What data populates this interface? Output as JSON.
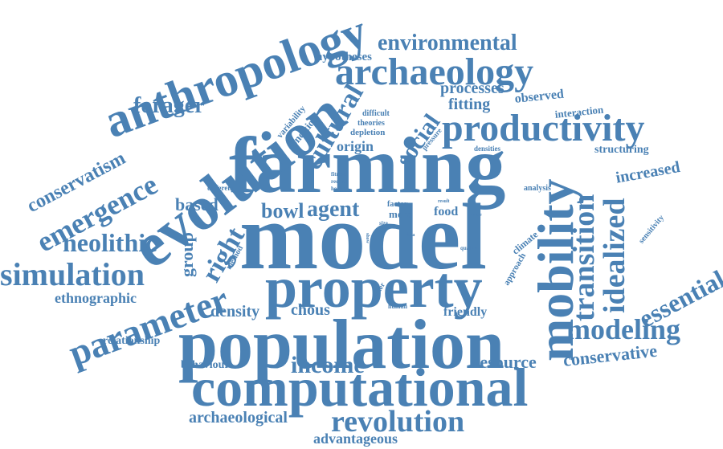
{
  "color": "#4a81b4",
  "words": [
    {
      "text": "farming",
      "weight": 100
    },
    {
      "text": "model",
      "weight": 96
    },
    {
      "text": "population",
      "weight": 88
    },
    {
      "text": "property",
      "weight": 80
    },
    {
      "text": "computational",
      "weight": 78
    },
    {
      "text": "evolution",
      "weight": 76
    },
    {
      "text": "mobility",
      "weight": 70
    },
    {
      "text": "anthropology",
      "weight": 68
    },
    {
      "text": "productivity",
      "weight": 64
    },
    {
      "text": "archaeology",
      "weight": 60
    },
    {
      "text": "parameter",
      "weight": 56
    },
    {
      "text": "revolution",
      "weight": 50
    },
    {
      "text": "transition",
      "weight": 48
    },
    {
      "text": "idealized",
      "weight": 46
    },
    {
      "text": "emergence",
      "weight": 44
    },
    {
      "text": "simulation",
      "weight": 44
    },
    {
      "text": "modeling",
      "weight": 42
    },
    {
      "text": "neolithic",
      "weight": 40
    },
    {
      "text": "environmental",
      "weight": 38
    },
    {
      "text": "cultural",
      "weight": 36
    },
    {
      "text": "income",
      "weight": 34
    },
    {
      "text": "essential",
      "weight": 34
    },
    {
      "text": "forager",
      "weight": 32
    },
    {
      "text": "right",
      "weight": 32
    },
    {
      "text": "social",
      "weight": 30
    },
    {
      "text": "conservatism",
      "weight": 28
    },
    {
      "text": "bowl",
      "weight": 28
    },
    {
      "text": "agent",
      "weight": 28
    },
    {
      "text": "archaeological",
      "weight": 26
    },
    {
      "text": "conservative",
      "weight": 26
    },
    {
      "text": "resource",
      "weight": 26
    },
    {
      "text": "advantageous",
      "weight": 24
    },
    {
      "text": "increased",
      "weight": 24
    },
    {
      "text": "density",
      "weight": 24
    },
    {
      "text": "chous",
      "weight": 24
    },
    {
      "text": "processes",
      "weight": 22
    },
    {
      "text": "fitting",
      "weight": 22
    },
    {
      "text": "group",
      "weight": 22
    },
    {
      "text": "ethnographic",
      "weight": 20
    },
    {
      "text": "relationship",
      "weight": 18
    },
    {
      "text": "behaviour",
      "weight": 18
    },
    {
      "text": "friendly",
      "weight": 18
    },
    {
      "text": "origin",
      "weight": 18
    },
    {
      "text": "based",
      "weight": 22
    },
    {
      "text": "hypotheses",
      "weight": 18
    },
    {
      "text": "observed",
      "weight": 18
    },
    {
      "text": "structuring",
      "weight": 16
    },
    {
      "text": "interaction",
      "weight": 14
    },
    {
      "text": "food",
      "weight": 16
    },
    {
      "text": "more",
      "weight": 14
    },
    {
      "text": "factor",
      "weight": 12
    },
    {
      "text": "climate",
      "weight": 12
    },
    {
      "text": "approach",
      "weight": 12
    },
    {
      "text": "variability",
      "weight": 12
    },
    {
      "text": "condition",
      "weight": 14
    },
    {
      "text": "difficult",
      "weight": 12
    },
    {
      "text": "theories",
      "weight": 12
    },
    {
      "text": "depletion",
      "weight": 12
    },
    {
      "text": "pressure",
      "weight": 10
    },
    {
      "text": "densities",
      "weight": 10
    },
    {
      "text": "analysis",
      "weight": 10
    },
    {
      "text": "sensitivity",
      "weight": 10
    },
    {
      "text": "different",
      "weight": 10
    },
    {
      "text": "fitness",
      "weight": 8
    },
    {
      "text": "record",
      "weight": 8
    },
    {
      "text": "health",
      "weight": 8
    },
    {
      "text": "method",
      "weight": 10
    },
    {
      "text": "size",
      "weight": 8
    },
    {
      "text": "show",
      "weight": 8
    },
    {
      "text": "data",
      "weight": 8
    },
    {
      "text": "result",
      "weight": 8
    },
    {
      "text": "value",
      "weight": 8
    },
    {
      "text": "quality",
      "weight": 8
    },
    {
      "text": "event",
      "weight": 8
    },
    {
      "text": "greater",
      "weight": 10
    },
    {
      "text": "human",
      "weight": 10
    }
  ]
}
